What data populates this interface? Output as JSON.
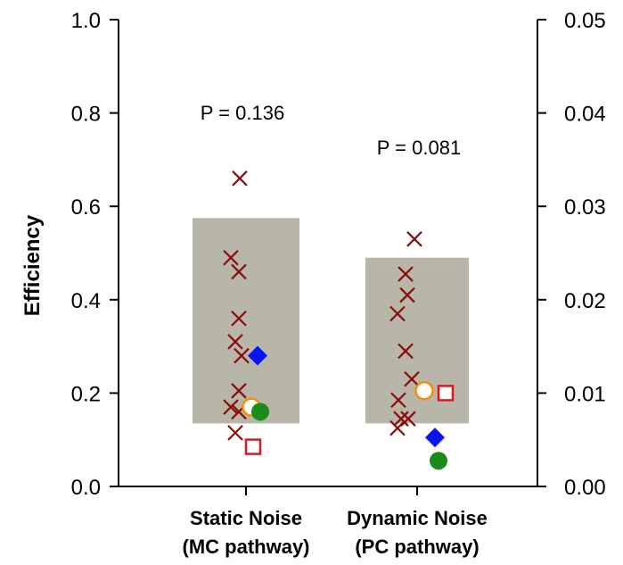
{
  "chart_data": {
    "type": "scatter",
    "ylabel": "Efficiency",
    "ylim": [
      0,
      1.0
    ],
    "y_ticks": [
      "0.0",
      "0.2",
      "0.4",
      "0.6",
      "0.8",
      "1.0"
    ],
    "y2lim": [
      0,
      0.05
    ],
    "y2_ticks": [
      "0.00",
      "0.01",
      "0.02",
      "0.03",
      "0.04",
      "0.05"
    ],
    "groups": [
      {
        "label_line1": "Static Noise",
        "label_line2": "(MC pathway)",
        "annotation": "P = 0.136",
        "box": [
          0.135,
          0.575
        ],
        "crosses": [
          {
            "dx": -0.07,
            "y": 0.66
          },
          {
            "dx": -0.17,
            "y": 0.49
          },
          {
            "dx": -0.08,
            "y": 0.46
          },
          {
            "dx": -0.08,
            "y": 0.36
          },
          {
            "dx": -0.12,
            "y": 0.31
          },
          {
            "dx": -0.05,
            "y": 0.28
          },
          {
            "dx": -0.08,
            "y": 0.205
          },
          {
            "dx": -0.17,
            "y": 0.17
          },
          {
            "dx": -0.08,
            "y": 0.16
          },
          {
            "dx": -0.12,
            "y": 0.115
          }
        ],
        "open_circle": {
          "dx": 0.06,
          "y": 0.17
        },
        "filled_circle": {
          "dx": 0.16,
          "y": 0.16
        },
        "diamond": {
          "dx": 0.13,
          "y": 0.28
        },
        "square": {
          "dx": 0.08,
          "y": 0.085
        }
      },
      {
        "label_line1": "Dynamic Noise",
        "label_line2": "(PC pathway)",
        "annotation": "P = 0.081",
        "box": [
          0.135,
          0.49
        ],
        "crosses": [
          {
            "dx": -0.03,
            "y": 0.53
          },
          {
            "dx": -0.13,
            "y": 0.455
          },
          {
            "dx": -0.11,
            "y": 0.41
          },
          {
            "dx": -0.22,
            "y": 0.37
          },
          {
            "dx": -0.13,
            "y": 0.29
          },
          {
            "dx": -0.06,
            "y": 0.23
          },
          {
            "dx": -0.21,
            "y": 0.185
          },
          {
            "dx": -0.18,
            "y": 0.145
          },
          {
            "dx": -0.1,
            "y": 0.145
          },
          {
            "dx": -0.22,
            "y": 0.125
          }
        ],
        "open_circle": {
          "dx": 0.08,
          "y": 0.205
        },
        "filled_circle": {
          "dx": 0.24,
          "y": 0.055
        },
        "diamond": {
          "dx": 0.2,
          "y": 0.105
        },
        "square": {
          "dx": 0.32,
          "y": 0.2
        }
      }
    ],
    "colors": {
      "box": "#b7b6a9",
      "cross": "#8b0a0a",
      "open_circle": "#f0900a",
      "filled_circle": "#1a8c1a",
      "diamond": "#0a14f0",
      "square": "#e0141e"
    }
  }
}
